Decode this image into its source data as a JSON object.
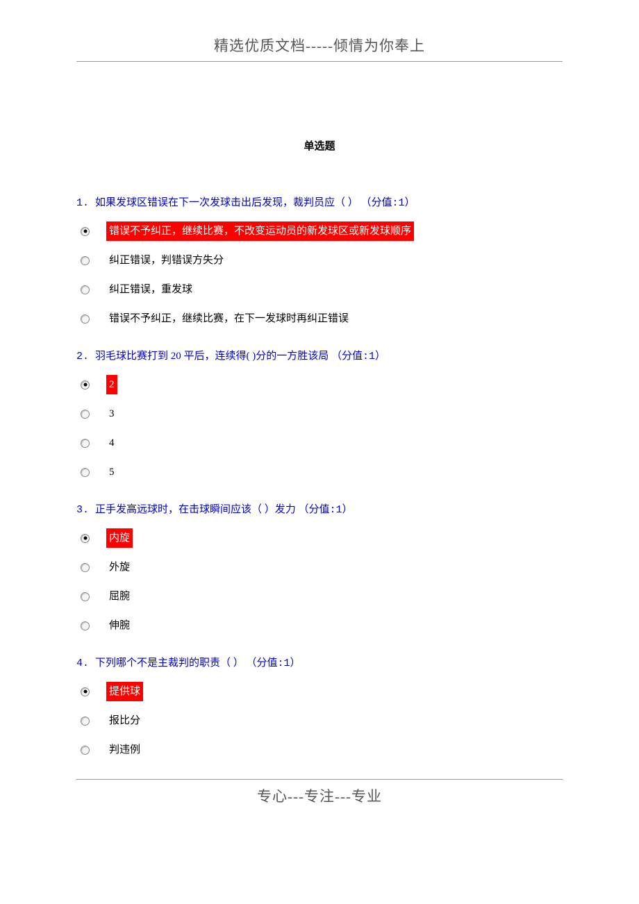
{
  "header_text": "精选优质文档-----倾情为你奉上",
  "footer_text": "专心---专注---专业",
  "section_title": "单选题",
  "colors": {
    "question_color": "#0000cc",
    "highlight_bg": "#ff0000",
    "highlight_text": "#ffffff",
    "body_text": "#000000",
    "header_footer_text": "#555555",
    "border_color": "#999999",
    "background": "#ffffff"
  },
  "typography": {
    "header_fontsize": 21,
    "section_title_fontsize": 15,
    "question_fontsize": 15,
    "option_fontsize": 15,
    "footer_fontsize": 21
  },
  "questions": [
    {
      "number": "1.",
      "text": "如果发球区错误在下一次发球击出后发现，裁判员应（ ）",
      "score": "（分值:1）",
      "options": [
        {
          "text": "错误不予纠正，继续比赛，不改变运动员的新发球区或新发球顺序",
          "selected": true,
          "highlighted": true
        },
        {
          "text": "纠正错误，判错误方失分",
          "selected": false,
          "highlighted": false
        },
        {
          "text": "纠正错误，重发球",
          "selected": false,
          "highlighted": false
        },
        {
          "text": "错误不予纠正，继续比赛，在下一发球时再纠正错误",
          "selected": false,
          "highlighted": false
        }
      ]
    },
    {
      "number": "2.",
      "text": "羽毛球比赛打到 20 平后，连续得( )分的一方胜该局",
      "score": "（分值:1）",
      "options": [
        {
          "text": "2",
          "selected": true,
          "highlighted": true
        },
        {
          "text": "3",
          "selected": false,
          "highlighted": false
        },
        {
          "text": "4",
          "selected": false,
          "highlighted": false
        },
        {
          "text": "5",
          "selected": false,
          "highlighted": false
        }
      ]
    },
    {
      "number": "3.",
      "text": "正手发高远球时，在击球瞬间应该（ ）发力",
      "score": "（分值:1）",
      "options": [
        {
          "text": "内旋",
          "selected": true,
          "highlighted": true
        },
        {
          "text": "外旋",
          "selected": false,
          "highlighted": false
        },
        {
          "text": "屈腕",
          "selected": false,
          "highlighted": false
        },
        {
          "text": "伸腕",
          "selected": false,
          "highlighted": false
        }
      ]
    },
    {
      "number": "4.",
      "text": "下列哪个不是主裁判的职责（ ）",
      "score": "（分值:1）",
      "options": [
        {
          "text": "提供球",
          "selected": true,
          "highlighted": true
        },
        {
          "text": "报比分",
          "selected": false,
          "highlighted": false
        },
        {
          "text": "判违例",
          "selected": false,
          "highlighted": false
        }
      ]
    }
  ]
}
